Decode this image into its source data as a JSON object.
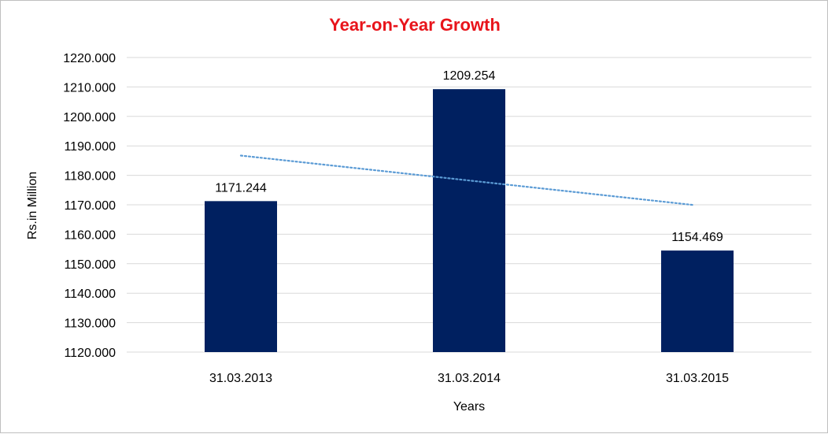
{
  "chart_data": {
    "type": "bar",
    "title": "Year-on-Year Growth",
    "xlabel": "Years",
    "ylabel": "Rs.in Million",
    "categories": [
      "31.03.2013",
      "31.03.2014",
      "31.03.2015"
    ],
    "values": [
      1171.244,
      1209.254,
      1154.469
    ],
    "data_labels": [
      "1171.244",
      "1209.254",
      "1154.469"
    ],
    "ylim": [
      1120,
      1220
    ],
    "yticks": [
      "1120.000",
      "1130.000",
      "1140.000",
      "1150.000",
      "1160.000",
      "1170.000",
      "1180.000",
      "1190.000",
      "1200.000",
      "1210.000",
      "1220.000"
    ],
    "trendline": "linear",
    "grid": true,
    "colors": {
      "bar": "#002060",
      "trend": "#5b9bd5",
      "title": "#e8141b",
      "grid": "#d9d9d9"
    }
  }
}
